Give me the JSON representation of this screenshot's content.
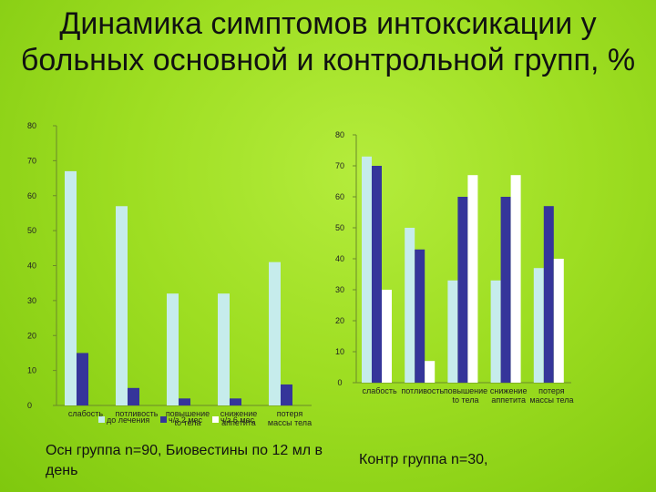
{
  "slide": {
    "title": "Динамика симптомов интоксикации у больных основной и контрольной групп, %",
    "left_caption": "Осн группа n=90, Биовестины по 12 мл в день",
    "right_caption": "Контр  группа n=30,"
  },
  "colors": {
    "before": "#c6ecec",
    "after": "#35359a",
    "third": "#ffffff",
    "axis": "#6b8a2a",
    "grid": "#6b8a2a"
  },
  "chart_data": [
    {
      "type": "bar",
      "title": "",
      "xlabel": "",
      "ylabel": "",
      "ylim": [
        0,
        80
      ],
      "yticks": [
        0,
        10,
        20,
        30,
        40,
        50,
        60,
        70,
        80
      ],
      "grid": false,
      "legend_position": "bottom",
      "categories": [
        [
          "слабость"
        ],
        [
          "потливость"
        ],
        [
          "повышение",
          "to тела"
        ],
        [
          "снижение",
          "аппетита"
        ],
        [
          "потеря",
          "массы тела"
        ]
      ],
      "series": [
        {
          "name": "до лечения",
          "values": [
            67,
            57,
            32,
            32,
            41
          ]
        },
        {
          "name": "ч/з 2 мес",
          "values": [
            15,
            5,
            2,
            2,
            6
          ]
        },
        {
          "name": "ч/з 6 мес",
          "values": [
            0,
            0,
            0,
            0,
            0
          ]
        }
      ]
    },
    {
      "type": "bar",
      "title": "",
      "xlabel": "",
      "ylabel": "",
      "ylim": [
        0,
        80
      ],
      "yticks": [
        0,
        10,
        20,
        30,
        40,
        50,
        60,
        70,
        80
      ],
      "grid": false,
      "legend_position": "none",
      "categories": [
        [
          "слабость"
        ],
        [
          "потливость"
        ],
        [
          "повышение",
          "to тела"
        ],
        [
          "снижение",
          "аппетита"
        ],
        [
          "потеря",
          "массы тела"
        ]
      ],
      "series": [
        {
          "values": [
            73,
            50,
            33,
            33,
            37
          ]
        },
        {
          "values": [
            70,
            43,
            60,
            60,
            57
          ]
        },
        {
          "values": [
            30,
            7,
            67,
            67,
            40
          ]
        }
      ]
    }
  ]
}
